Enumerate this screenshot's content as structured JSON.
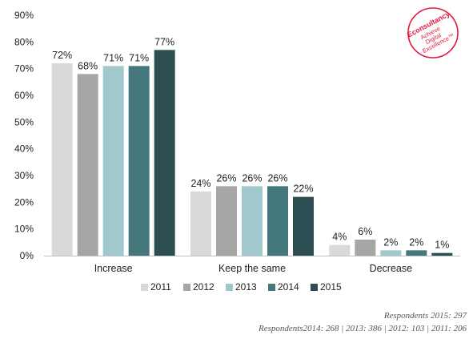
{
  "chart_data": {
    "type": "bar",
    "categories": [
      "Increase",
      "Keep the same",
      "Decrease"
    ],
    "series": [
      {
        "name": "2011",
        "values": [
          72,
          24,
          4
        ],
        "labels": [
          "72%",
          "24%",
          "4%"
        ]
      },
      {
        "name": "2012",
        "values": [
          68,
          26,
          6
        ],
        "labels": [
          "68%",
          "26%",
          "6%"
        ]
      },
      {
        "name": "2013",
        "values": [
          71,
          26,
          2
        ],
        "labels": [
          "71%",
          "26%",
          "2%"
        ]
      },
      {
        "name": "2014",
        "values": [
          71,
          26,
          2
        ],
        "labels": [
          "71%",
          "26%",
          "2%"
        ]
      },
      {
        "name": "2015",
        "values": [
          77,
          22,
          1
        ],
        "labels": [
          "77%",
          "22%",
          "1%"
        ]
      }
    ],
    "ylim": [
      0,
      90
    ],
    "yticks": [
      "0%",
      "10%",
      "20%",
      "30%",
      "40%",
      "50%",
      "60%",
      "70%",
      "80%",
      "90%"
    ],
    "grid": false,
    "legend_position": "bottom",
    "colors": [
      "#d9d9d9",
      "#a6a6a6",
      "#a1c9cd",
      "#45787c",
      "#2c4d52"
    ]
  },
  "logo": {
    "brand": "Econsultancy",
    "tagline_1": "Achieve",
    "tagline_2": "Digital",
    "tagline_3": "Excellence™",
    "color": "#e3173e"
  },
  "footnotes": {
    "line1": "Respondents 2015: 297",
    "line2": "Respondents2014: 268 | 2013: 386 | 2012: 103 | 2011: 206"
  }
}
